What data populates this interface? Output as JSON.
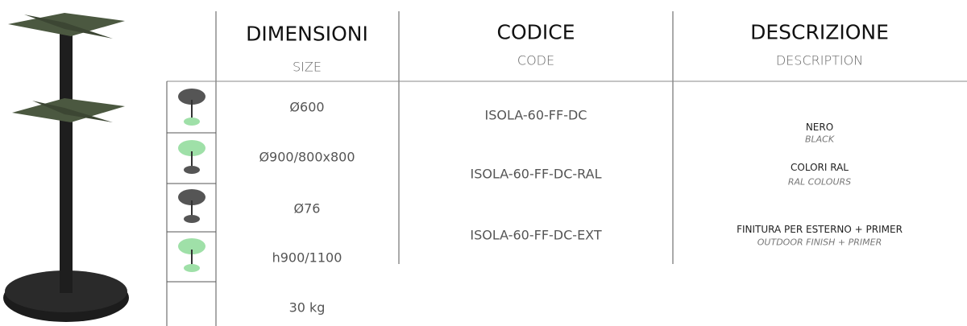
{
  "header": {
    "columns": [
      {
        "title": "DIMENSIONI",
        "subtitle": "SIZE"
      },
      {
        "title": "CODICE",
        "subtitle": "CODE"
      },
      {
        "title": "DESCRIZIONE",
        "subtitle": "DESCRIPTION"
      }
    ]
  },
  "dimensions": [
    "Ø600",
    "Ø900/800x800",
    "Ø76",
    "h900/1100",
    "30 kg"
  ],
  "codes": [
    "ISOLA-60-FF-DC",
    "ISOLA-60-FF-DC-RAL",
    "ISOLA-60-FF-DC-EXT"
  ],
  "descriptions": [
    {
      "name": "NERO",
      "translation": "BLACK"
    },
    {
      "name": "COLORI RAL",
      "translation": "RAL COLOURS"
    },
    {
      "name": "FINITURA PER ESTERNO + PRIMER",
      "translation": "OUTDOOR FINISH + PRIMER"
    }
  ]
}
